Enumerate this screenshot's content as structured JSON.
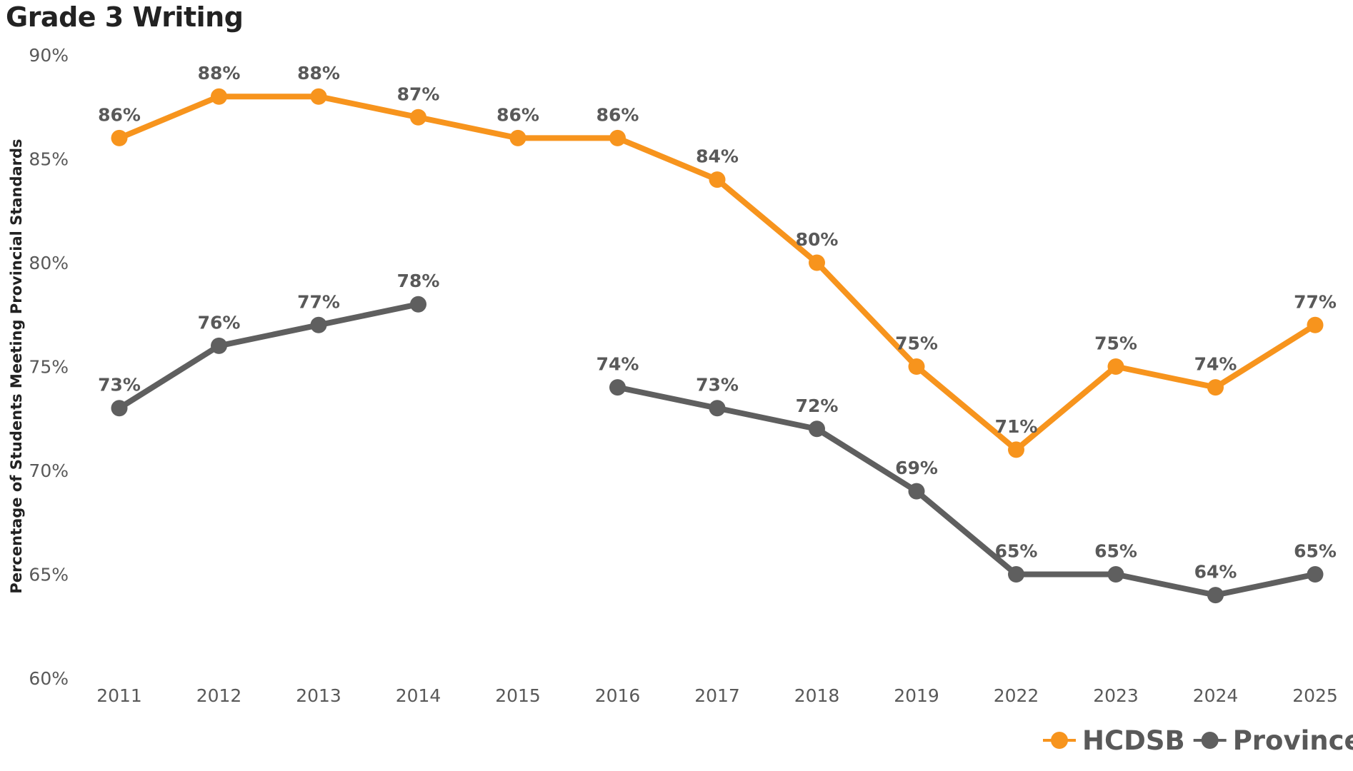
{
  "chart_data": {
    "type": "line",
    "title": "Grade 3 Writing",
    "xlabel": "",
    "ylabel": "Percentage of Students Meeting Provincial Standards",
    "categories": [
      "2011",
      "2012",
      "2013",
      "2014",
      "2015",
      "2016",
      "2017",
      "2018",
      "2019",
      "2022",
      "2023",
      "2024",
      "2025"
    ],
    "ylim": [
      60,
      90
    ],
    "yticks": [
      60,
      65,
      70,
      75,
      80,
      85,
      90
    ],
    "ytick_labels": [
      "60%",
      "65%",
      "70%",
      "75%",
      "80%",
      "85%",
      "90%"
    ],
    "grid": false,
    "legend_position": "bottom-right",
    "series": [
      {
        "name": "HCDSB",
        "color": "#F7941D",
        "values": [
          86,
          88,
          88,
          87,
          86,
          86,
          84,
          80,
          75,
          71,
          75,
          74,
          77
        ],
        "labels": [
          "86%",
          "88%",
          "88%",
          "87%",
          "86%",
          "86%",
          "84%",
          "80%",
          "75%",
          "71%",
          "75%",
          "74%",
          "77%"
        ]
      },
      {
        "name": "Province",
        "color": "#5F5F5F",
        "values": [
          73,
          76,
          77,
          78,
          null,
          74,
          73,
          72,
          69,
          65,
          65,
          64,
          65
        ],
        "labels": [
          "73%",
          "76%",
          "77%",
          "78%",
          "",
          "74%",
          "73%",
          "72%",
          "69%",
          "65%",
          "65%",
          "64%",
          "65%"
        ]
      }
    ]
  }
}
